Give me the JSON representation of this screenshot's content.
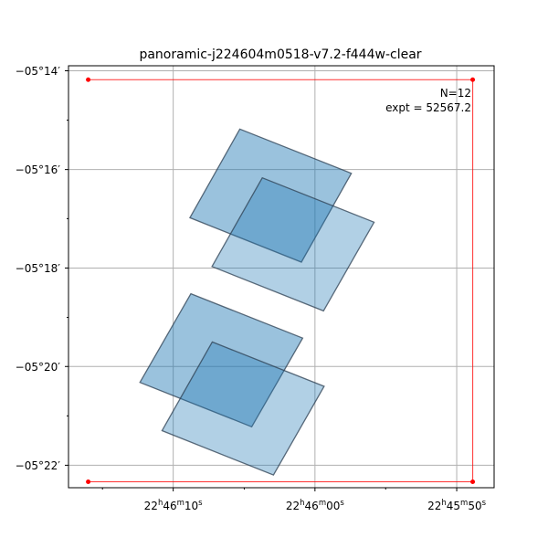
{
  "chart_data": {
    "type": "scatter",
    "title": "panoramic-j224604m0518-v7.2-f444w-clear",
    "xlabel": "",
    "ylabel": "",
    "x_ticks": [
      {
        "label": "22h46m10s",
        "h": "22",
        "m": "46",
        "s": "10",
        "value": 341.5417
      },
      {
        "label": "22h46m00s",
        "h": "22",
        "m": "46",
        "s": "00",
        "value": 341.5
      },
      {
        "label": "22h45m50s",
        "h": "22",
        "m": "45",
        "s": "50",
        "value": 341.4583
      }
    ],
    "y_ticks": [
      {
        "label": "−05°14′",
        "value": -5.2333
      },
      {
        "label": "−05°16′",
        "value": -5.2667
      },
      {
        "label": "−05°18′",
        "value": -5.3
      },
      {
        "label": "−05°20′",
        "value": -5.3333
      },
      {
        "label": "−05°22′",
        "value": -5.3667
      }
    ],
    "xlim": [
      341.5725,
      341.4473
    ],
    "ylim": [
      -5.3743,
      -5.2316
    ],
    "grid": true,
    "annotation_n": "N=12",
    "annotation_expt": "expt = 52567.2",
    "colors": {
      "footprint": "#1f77b4",
      "boundary": "#ff0000",
      "grid": "#b0b0b0"
    },
    "boundary": [
      [
        341.5667,
        -5.2363
      ],
      [
        341.4536,
        -5.2363
      ],
      [
        341.4536,
        -5.3723
      ],
      [
        341.5667,
        -5.3723
      ]
    ],
    "footprints": [
      {
        "corners": [
          [
            341.5221,
            -5.253
          ],
          [
            341.4893,
            -5.268
          ],
          [
            341.504,
            -5.298
          ],
          [
            341.5368,
            -5.283
          ]
        ],
        "alpha": 0.45
      },
      {
        "corners": [
          [
            341.5155,
            -5.2695
          ],
          [
            341.4826,
            -5.2845
          ],
          [
            341.4975,
            -5.3145
          ],
          [
            341.5303,
            -5.2995
          ]
        ],
        "alpha": 0.35
      },
      {
        "corners": [
          [
            341.5365,
            -5.3087
          ],
          [
            341.5036,
            -5.3237
          ],
          [
            341.5186,
            -5.3537
          ],
          [
            341.5515,
            -5.3387
          ]
        ],
        "alpha": 0.45
      },
      {
        "corners": [
          [
            341.5302,
            -5.325
          ],
          [
            341.4973,
            -5.34
          ],
          [
            341.5122,
            -5.37
          ],
          [
            341.545,
            -5.355
          ]
        ],
        "alpha": 0.35
      }
    ]
  }
}
